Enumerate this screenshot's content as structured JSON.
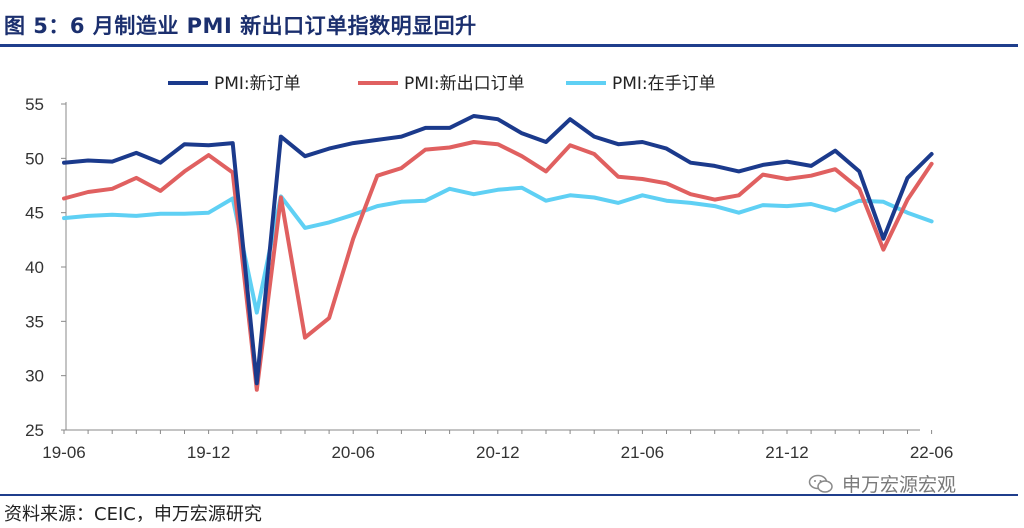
{
  "header": {
    "title": "图 5：6 月制造业 PMI 新出口订单指数明显回升"
  },
  "footer": {
    "source": "资料来源：CEIC，申万宏源研究",
    "watermark": "申万宏源宏观"
  },
  "chart_data": {
    "type": "line",
    "title": "",
    "xlabel": "",
    "ylabel": "",
    "ylim": [
      25,
      55
    ],
    "yticks": [
      25,
      30,
      35,
      40,
      45,
      50,
      55
    ],
    "x": [
      "19-06",
      "19-07",
      "19-08",
      "19-09",
      "19-10",
      "19-11",
      "19-12",
      "20-01",
      "20-02",
      "20-03",
      "20-04",
      "20-05",
      "20-06",
      "20-07",
      "20-08",
      "20-09",
      "20-10",
      "20-11",
      "20-12",
      "21-01",
      "21-02",
      "21-03",
      "21-04",
      "21-05",
      "21-06",
      "21-07",
      "21-08",
      "21-09",
      "21-10",
      "21-11",
      "21-12",
      "22-01",
      "22-02",
      "22-03",
      "22-04",
      "22-05",
      "22-06"
    ],
    "xtick_labels": [
      "19-06",
      "19-12",
      "20-06",
      "20-12",
      "21-06",
      "21-12",
      "22-06"
    ],
    "grid": false,
    "legend": "top",
    "series": [
      {
        "name": "PMI:新订单",
        "color": "#1b3a8c",
        "values": [
          49.6,
          49.8,
          49.7,
          50.5,
          49.6,
          51.3,
          51.2,
          51.4,
          29.3,
          52.0,
          50.2,
          50.9,
          51.4,
          51.7,
          52.0,
          52.8,
          52.8,
          53.9,
          53.6,
          52.3,
          51.5,
          53.6,
          52.0,
          51.3,
          51.5,
          50.9,
          49.6,
          49.3,
          48.8,
          49.4,
          49.7,
          49.3,
          50.7,
          48.8,
          42.6,
          48.2,
          50.4
        ]
      },
      {
        "name": "PMI:新出口订单",
        "color": "#e06060",
        "values": [
          46.3,
          46.9,
          47.2,
          48.2,
          47.0,
          48.8,
          50.3,
          48.7,
          28.7,
          46.4,
          33.5,
          35.3,
          42.6,
          48.4,
          49.1,
          50.8,
          51.0,
          51.5,
          51.3,
          50.2,
          48.8,
          51.2,
          50.4,
          48.3,
          48.1,
          47.7,
          46.7,
          46.2,
          46.6,
          48.5,
          48.1,
          48.4,
          49.0,
          47.2,
          41.6,
          46.2,
          49.5
        ]
      },
      {
        "name": "PMI:在手订单",
        "color": "#5fd0f4",
        "values": [
          44.5,
          44.7,
          44.8,
          44.7,
          44.9,
          44.9,
          45.0,
          46.3,
          35.8,
          46.5,
          43.6,
          44.1,
          44.8,
          45.6,
          46.0,
          46.1,
          47.2,
          46.7,
          47.1,
          47.3,
          46.1,
          46.6,
          46.4,
          45.9,
          46.6,
          46.1,
          45.9,
          45.6,
          45.0,
          45.7,
          45.6,
          45.8,
          45.2,
          46.1,
          46.0,
          45.0,
          44.2
        ]
      }
    ]
  }
}
